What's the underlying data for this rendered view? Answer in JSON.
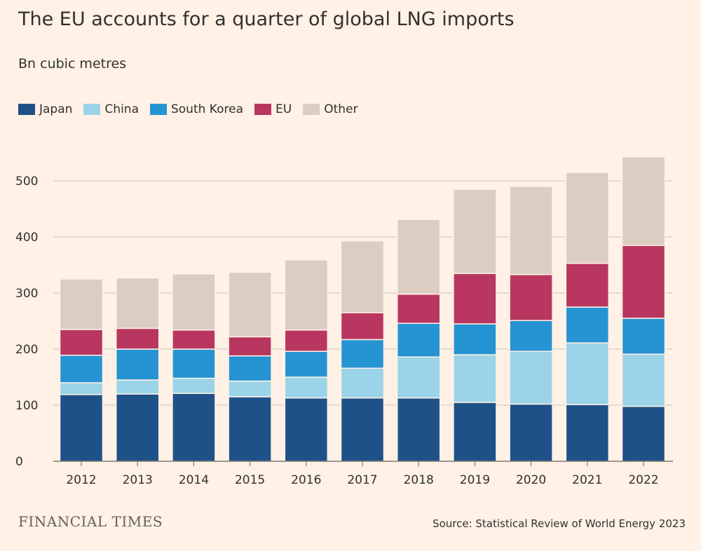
{
  "title": "The EU accounts for a quarter of global LNG imports",
  "subtitle": "Bn cubic metres",
  "source": "Source: Statistical Review of World Energy 2023",
  "logo": "FINANCIAL TIMES",
  "colors": {
    "background": "#fff1e5",
    "grid": "#ccc1b7",
    "axis": "#66605c"
  },
  "chart_data": {
    "type": "bar",
    "stacked": true,
    "categories": [
      "2012",
      "2013",
      "2014",
      "2015",
      "2016",
      "2017",
      "2018",
      "2019",
      "2020",
      "2021",
      "2022"
    ],
    "ylim": [
      0,
      550
    ],
    "yticks": [
      0,
      100,
      200,
      300,
      400,
      500
    ],
    "grid": true,
    "legend_position": "top-left",
    "series": [
      {
        "name": "Japan",
        "color": "#1f5189",
        "values": [
          119,
          120,
          121,
          115,
          113,
          113,
          113,
          105,
          102,
          101,
          98
        ]
      },
      {
        "name": "China",
        "color": "#9bd3e8",
        "values": [
          21,
          25,
          27,
          28,
          37,
          53,
          73,
          85,
          94,
          110,
          93
        ]
      },
      {
        "name": "South Korea",
        "color": "#2693d3",
        "values": [
          49,
          55,
          52,
          45,
          46,
          51,
          60,
          55,
          55,
          64,
          64
        ]
      },
      {
        "name": "EU",
        "color": "#b8365f",
        "values": [
          46,
          37,
          34,
          34,
          38,
          48,
          52,
          90,
          82,
          78,
          130
        ]
      },
      {
        "name": "Other",
        "color": "#dccdc2",
        "values": [
          90,
          90,
          100,
          115,
          125,
          128,
          133,
          150,
          157,
          162,
          158
        ]
      }
    ]
  }
}
